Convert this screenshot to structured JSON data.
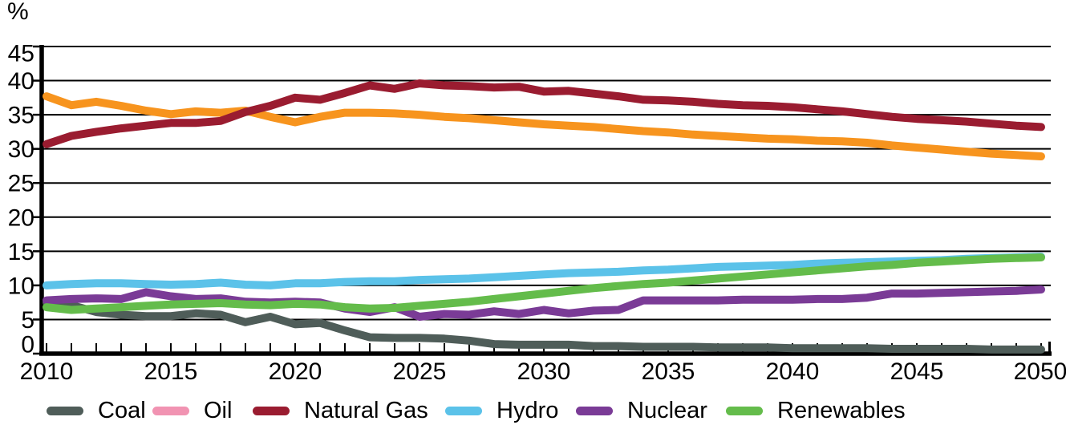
{
  "chart_data": {
    "type": "line",
    "title": "",
    "xlabel": "",
    "ylabel": "%",
    "ylim": [
      0,
      45
    ],
    "xlim": [
      2010,
      2050
    ],
    "grid": true,
    "legend_position": "bottom",
    "y_ticks": [
      0,
      5,
      10,
      15,
      20,
      25,
      30,
      35,
      40,
      45
    ],
    "y_tick_labels": [
      "0",
      "5",
      "10",
      "15",
      "20",
      "25",
      "30",
      "35",
      "40",
      "45"
    ],
    "x_tick_step": 1,
    "x_label_years": [
      2010,
      2015,
      2020,
      2025,
      2030,
      2035,
      2040,
      2045,
      2050
    ],
    "x_tick_labels": [
      "2010",
      "2015",
      "2020",
      "2025",
      "2030",
      "2035",
      "2040",
      "2045",
      "2050"
    ],
    "x": [
      2010,
      2011,
      2012,
      2013,
      2014,
      2015,
      2016,
      2017,
      2018,
      2019,
      2020,
      2021,
      2022,
      2023,
      2024,
      2025,
      2026,
      2027,
      2028,
      2029,
      2030,
      2031,
      2032,
      2033,
      2034,
      2035,
      2036,
      2037,
      2038,
      2039,
      2040,
      2041,
      2042,
      2043,
      2044,
      2045,
      2046,
      2047,
      2048,
      2049,
      2050
    ],
    "series": [
      {
        "name": "Coal",
        "line_color": "#4F5D59",
        "legend_color": "#4F5D59",
        "values": [
          7.5,
          7.1,
          6.1,
          5.7,
          5.5,
          5.5,
          5.9,
          5.7,
          4.6,
          5.4,
          4.3,
          4.5,
          3.4,
          2.4,
          2.3,
          2.3,
          2.2,
          1.9,
          1.4,
          1.3,
          1.3,
          1.3,
          1.1,
          1.1,
          1.0,
          1.0,
          1.0,
          0.9,
          0.9,
          0.9,
          0.8,
          0.8,
          0.8,
          0.8,
          0.7,
          0.7,
          0.7,
          0.7,
          0.6,
          0.6,
          0.6
        ]
      },
      {
        "name": "Oil",
        "line_color": "#F7941E",
        "legend_color": "#F193B2",
        "values": [
          37.7,
          36.4,
          36.9,
          36.3,
          35.6,
          35.1,
          35.5,
          35.3,
          35.6,
          34.7,
          33.9,
          34.7,
          35.3,
          35.3,
          35.2,
          35.0,
          34.7,
          34.5,
          34.2,
          33.9,
          33.6,
          33.4,
          33.2,
          32.9,
          32.6,
          32.4,
          32.1,
          31.9,
          31.7,
          31.5,
          31.4,
          31.2,
          31.1,
          30.9,
          30.5,
          30.2,
          29.9,
          29.6,
          29.3,
          29.1,
          28.9
        ]
      },
      {
        "name": "Natural Gas",
        "line_color": "#9A1C30",
        "legend_color": "#9A1C30",
        "values": [
          30.7,
          31.9,
          32.5,
          33.0,
          33.4,
          33.8,
          33.8,
          34.1,
          35.4,
          36.3,
          37.5,
          37.2,
          38.2,
          39.3,
          38.8,
          39.6,
          39.3,
          39.2,
          39.0,
          39.1,
          38.4,
          38.5,
          38.1,
          37.7,
          37.2,
          37.1,
          36.9,
          36.6,
          36.4,
          36.3,
          36.1,
          35.8,
          35.5,
          35.1,
          34.7,
          34.4,
          34.2,
          34.0,
          33.7,
          33.4,
          33.2
        ]
      },
      {
        "name": "Hydro",
        "line_color": "#5BC2E9",
        "legend_color": "#5BC2E9",
        "values": [
          10.0,
          10.2,
          10.3,
          10.3,
          10.2,
          10.1,
          10.2,
          10.4,
          10.1,
          10.0,
          10.3,
          10.3,
          10.5,
          10.6,
          10.6,
          10.8,
          10.9,
          11.0,
          11.2,
          11.4,
          11.6,
          11.8,
          11.9,
          12.0,
          12.2,
          12.3,
          12.5,
          12.7,
          12.8,
          12.9,
          13.0,
          13.2,
          13.3,
          13.4,
          13.5,
          13.6,
          13.7,
          13.9,
          14.0,
          14.1,
          14.2
        ]
      },
      {
        "name": "Nuclear",
        "line_color": "#7A3B96",
        "legend_color": "#7A3B96",
        "values": [
          7.8,
          8.0,
          8.1,
          8.0,
          9.0,
          8.4,
          8.0,
          8.1,
          7.6,
          7.5,
          7.6,
          7.5,
          6.6,
          6.1,
          6.8,
          5.4,
          5.8,
          5.7,
          6.2,
          5.8,
          6.4,
          5.9,
          6.3,
          6.4,
          7.8,
          7.8,
          7.8,
          7.8,
          7.9,
          7.9,
          7.9,
          8.0,
          8.0,
          8.2,
          8.8,
          8.8,
          8.9,
          9.0,
          9.1,
          9.2,
          9.4
        ]
      },
      {
        "name": "Renewables",
        "line_color": "#64BC4B",
        "legend_color": "#64BC4B",
        "values": [
          6.8,
          6.4,
          6.6,
          6.8,
          7.0,
          7.2,
          7.3,
          7.4,
          7.2,
          7.1,
          7.3,
          7.2,
          6.8,
          6.6,
          6.7,
          7.0,
          7.3,
          7.6,
          8.0,
          8.4,
          8.8,
          9.2,
          9.6,
          9.9,
          10.2,
          10.4,
          10.7,
          11.0,
          11.3,
          11.6,
          11.9,
          12.2,
          12.5,
          12.8,
          13.0,
          13.3,
          13.5,
          13.7,
          13.9,
          14.0,
          14.1
        ]
      }
    ]
  }
}
